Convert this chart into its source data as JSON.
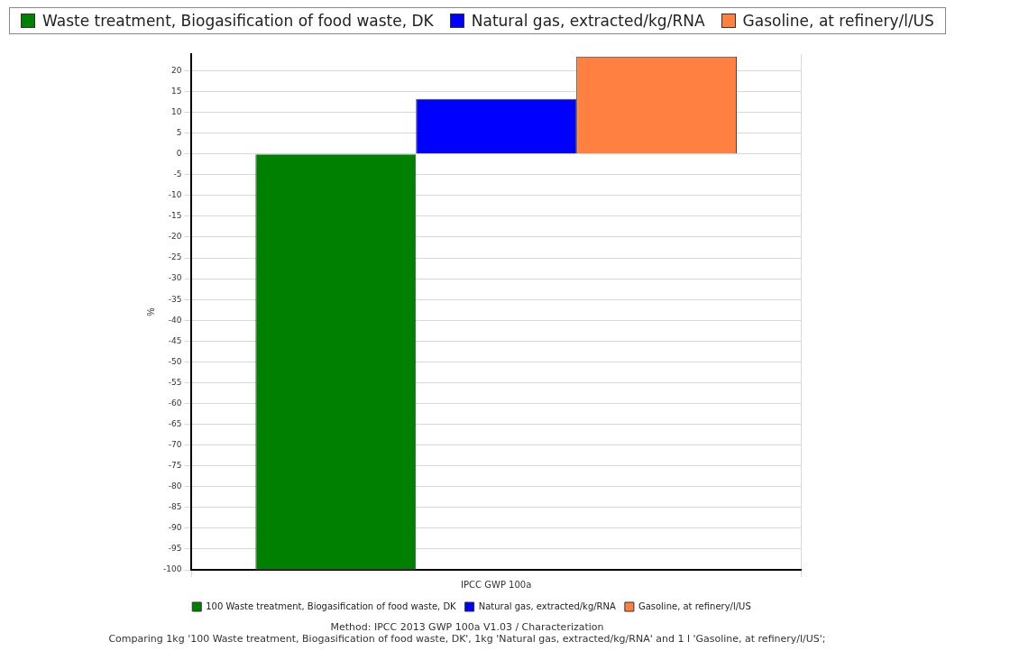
{
  "chart_data": {
    "type": "bar",
    "categories": [
      "IPCC GWP 100a"
    ],
    "ylabel": "%",
    "ylim": [
      -100,
      24
    ],
    "yticks": [
      -100,
      -95,
      -90,
      -85,
      -80,
      -75,
      -70,
      -65,
      -60,
      -55,
      -50,
      -45,
      -40,
      -35,
      -30,
      -25,
      -20,
      -15,
      -10,
      -5,
      0,
      5,
      10,
      15,
      20
    ],
    "grid": true,
    "legend": "bottom",
    "series": [
      {
        "name": "100 Waste treatment, Biogasification of food waste, DK",
        "color": "#008000",
        "values": [
          -100
        ]
      },
      {
        "name": "Natural gas, extracted/kg/RNA",
        "color": "#0000ff",
        "values": [
          13.2
        ]
      },
      {
        "name": "Gasoline, at refinery/l/US",
        "color": "#ff8040",
        "values": [
          23.4
        ]
      }
    ],
    "annotations": [
      "Waste treatment, Biogasification of food waste, DK",
      "Natural gas, extracted/kg/RNA",
      "Gasoline, at refinery/l/US",
      "Method: IPCC 2013 GWP 100a V1.03 / Characterization",
      "Comparing 1kg '100 Waste treatment, Biogasification of food waste, DK', 1kg 'Natural gas, extracted/kg/RNA' and 1 l 'Gasoline, at refinery/l/US';"
    ]
  }
}
